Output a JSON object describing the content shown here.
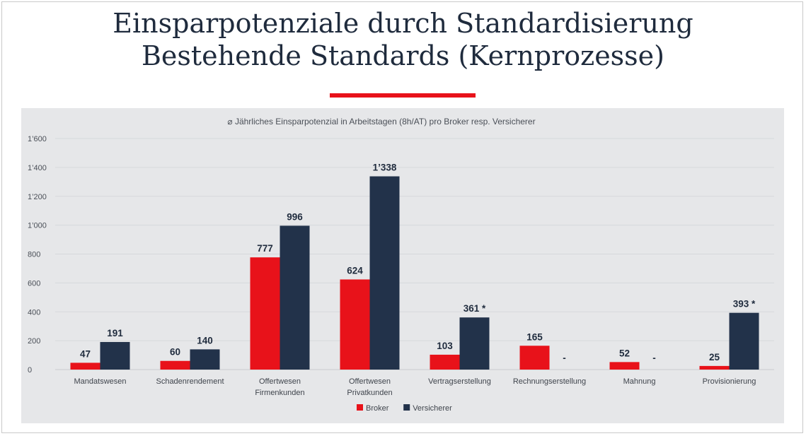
{
  "slide": {
    "title_line1": "Einsparpotenziale durch Standardisierung",
    "title_line2": "Bestehende Standards (Kernprozesse)"
  },
  "colors": {
    "broker": "#e8121a",
    "versicherer": "#22324a",
    "accent": "#e8121a",
    "panel": "#e6e7e9"
  },
  "chart_data": {
    "type": "bar",
    "title": "⌀ Jährliches Einsparpotenzial in Arbeitstagen (8h/AT) pro Broker resp. Versicherer",
    "categories": [
      [
        "Mandatswesen"
      ],
      [
        "Schadenrendement"
      ],
      [
        "Offertwesen",
        "Firmenkunden"
      ],
      [
        "Offertwesen",
        "Privatkunden"
      ],
      [
        "Vertragserstellung"
      ],
      [
        "Rechnungserstellung"
      ],
      [
        "Mahnung"
      ],
      [
        "Provisionierung"
      ]
    ],
    "series": [
      {
        "name": "Broker",
        "color": "#e8121a",
        "values": [
          47,
          60,
          777,
          624,
          103,
          165,
          52,
          25
        ],
        "labels": [
          "47",
          "60",
          "777",
          "624",
          "103",
          "165",
          "52",
          "25"
        ]
      },
      {
        "name": "Versicherer",
        "color": "#22324a",
        "values": [
          191,
          140,
          996,
          1338,
          361,
          0,
          0,
          393
        ],
        "labels": [
          "191",
          "140",
          "996",
          "1’338",
          "361 *",
          "-",
          "-",
          "393 *"
        ]
      }
    ],
    "yticks": [
      {
        "value": 0,
        "label": "0"
      },
      {
        "value": 200,
        "label": "200"
      },
      {
        "value": 400,
        "label": "400"
      },
      {
        "value": 600,
        "label": "600"
      },
      {
        "value": 800,
        "label": "800"
      },
      {
        "value": 1000,
        "label": "1’000"
      },
      {
        "value": 1200,
        "label": "1’200"
      },
      {
        "value": 1400,
        "label": "1’400"
      },
      {
        "value": 1600,
        "label": "1’600"
      }
    ],
    "ylim": [
      0,
      1600
    ],
    "grid": true,
    "legend": "bottom-center"
  }
}
